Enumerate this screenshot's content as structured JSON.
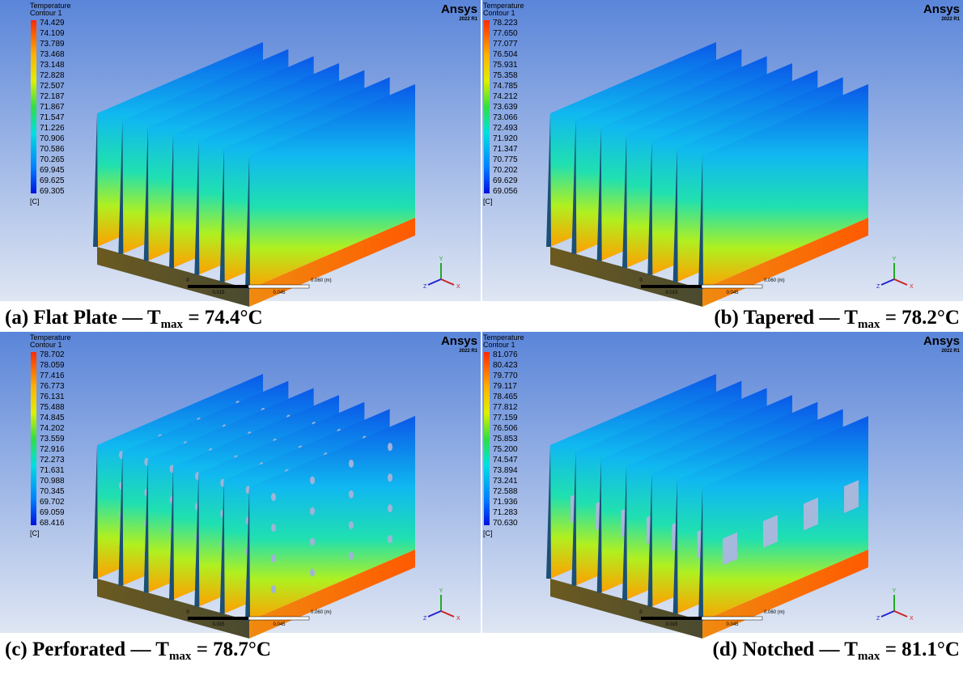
{
  "panels": [
    {
      "legend": {
        "title": "Temperature",
        "subtitle": "Contour 1",
        "values": [
          "74.429",
          "74.109",
          "73.789",
          "73.468",
          "73.148",
          "72.828",
          "72.507",
          "72.187",
          "71.867",
          "71.547",
          "71.226",
          "70.906",
          "70.586",
          "70.265",
          "69.945",
          "69.625",
          "69.305"
        ],
        "unit": "[C]"
      },
      "logo": "Ansys",
      "version": "2022 R1",
      "scale": [
        "0",
        "0.015",
        "0.045",
        "0.060 (m)"
      ],
      "axes": [
        "Y",
        "Z",
        "X"
      ],
      "caption": {
        "prefix": "(a) Flat Plate  —  T",
        "subscript": "max",
        "suffix": " = 74.4°C"
      }
    },
    {
      "legend": {
        "title": "Temperature",
        "subtitle": "Contour 1",
        "values": [
          "78.223",
          "77.650",
          "77.077",
          "76.504",
          "75.931",
          "75.358",
          "74.785",
          "74.212",
          "73.639",
          "73.066",
          "72.493",
          "71.920",
          "71.347",
          "70.775",
          "70.202",
          "69.629",
          "69.056"
        ],
        "unit": "[C]"
      },
      "logo": "Ansys",
      "version": "2022 R1",
      "scale": [
        "0",
        "0.015",
        "0.045",
        "0.060 (m)"
      ],
      "axes": [
        "Y",
        "Z",
        "X"
      ],
      "caption": {
        "prefix": "(b) Tapered  —  T",
        "subscript": "max",
        "suffix": " = 78.2°C"
      }
    },
    {
      "legend": {
        "title": "Temperature",
        "subtitle": "Contour 1",
        "values": [
          "78.702",
          "78.059",
          "77.416",
          "76.773",
          "76.131",
          "75.488",
          "74.845",
          "74.202",
          "73.559",
          "72.916",
          "72.273",
          "71.631",
          "70.988",
          "70.345",
          "69.702",
          "69.059",
          "68.416"
        ],
        "unit": "[C]"
      },
      "logo": "Ansys",
      "version": "2022 R1",
      "scale": [
        "0",
        "0.015",
        "0.045",
        "0.060 (m)"
      ],
      "axes": [
        "Y",
        "Z",
        "X"
      ],
      "caption": {
        "prefix": "(c) Perforated  —  T",
        "subscript": "max",
        "suffix": " = 78.7°C"
      }
    },
    {
      "legend": {
        "title": "Temperature",
        "subtitle": "Contour 1",
        "values": [
          "81.076",
          "80.423",
          "79.770",
          "79.117",
          "78.465",
          "77.812",
          "77.159",
          "76.506",
          "75.853",
          "75.200",
          "74.547",
          "73.894",
          "73.241",
          "72.588",
          "71.936",
          "71.283",
          "70.630"
        ],
        "unit": "[C]"
      },
      "logo": "Ansys",
      "version": "2022 R1",
      "scale": [
        "0",
        "0.015",
        "0.045",
        "0.060 (m)"
      ],
      "axes": [
        "Y",
        "Z",
        "X"
      ],
      "caption": {
        "prefix": "(d) Notched  —  T",
        "subscript": "max",
        "suffix": " = 81.1°C"
      }
    }
  ]
}
